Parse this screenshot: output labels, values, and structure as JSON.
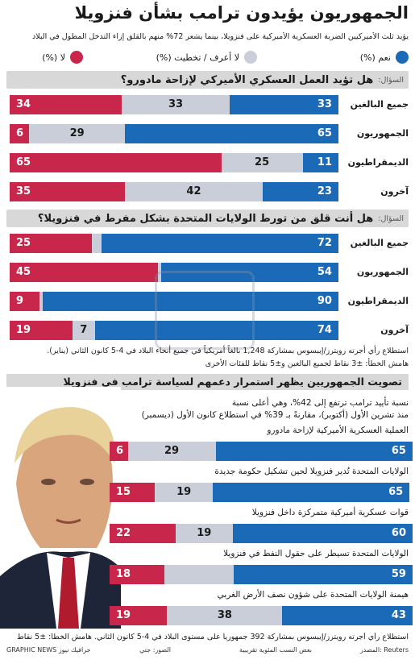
{
  "title": "الجمهوريون يؤيدون ترامب بشأن فنزويلا",
  "subtitle": "يؤيد ثلث الأميركيين الضربة العسكرية الأميركية على فنزويلا، بينما يشعر 72% منهم بالقلق إزاء التدخل المطول في البلاد",
  "legend": {
    "yes": "نعم (%)",
    "dontknow": "لا أعرف / تخطيت (%)",
    "no": "لا (%)"
  },
  "colors": {
    "yes": "#1a6ab8",
    "dontknow": "#c9ced8",
    "no": "#c8264a"
  },
  "q1": {
    "label": "السؤال:",
    "text": "هل تؤيد العمل العسكري الأميركي لإزاحة مادورو؟"
  },
  "q2": {
    "label": "السؤال:",
    "text": "هل أنت قلق من تورط الولايات المتحدة بشكل مفرط في فنزويلا؟"
  },
  "note1": "استطلاع رأي أجرته رويترز/إيبسوس بمشاركة 1,248 بالغاً أمريكياً في جميع أنحاء البلاد في 4-5 كانون الثاني (يناير).",
  "note2": "هامش الخطأ: ±3 نقاط لجميع البالغين و±5 نقاط للفئات الأخرى",
  "section2": {
    "title": "تصويت الجمهوريين يظهر استمرار دعمهم لسياسة ترامب في فنزويلا",
    "intro1": "نسبة تأييد ترامب ترتفع إلى 42%، وهي أعلى نسبة",
    "intro2": "منذ تشرين الأول (أكتوبر)، مقارنةً بـ 39% في استطلاع كانون الأول (ديسمبر)"
  },
  "footer": "استطلاع رأي أجرته رويترز/إيبسوس بمشاركة 392 جمهورياً على مستوى البلاد في 4-5 كانون الثاني. هامش الخطأ: ±5 نقاط",
  "credits": {
    "source": "المصدر: Reuters",
    "rounding": "بعض النسب المئوية تقريبية",
    "photo": "الصور: جتي",
    "brand": "GRAPHIC NEWS جرافيك نيوز"
  },
  "chart_data": [
    {
      "type": "bar",
      "title": "هل تؤيد العمل العسكري الأميركي لإزاحة مادورو؟",
      "categories": [
        "جميع البالغين",
        "الجمهوريون",
        "الديمقراطيون",
        "آخرون"
      ],
      "series": [
        {
          "name": "نعم (%)",
          "values": [
            33,
            65,
            11,
            23
          ]
        },
        {
          "name": "لا أعرف / تخطيت (%)",
          "values": [
            33,
            29,
            25,
            42
          ]
        },
        {
          "name": "لا (%)",
          "values": [
            34,
            6,
            65,
            35
          ]
        }
      ]
    },
    {
      "type": "bar",
      "title": "هل أنت قلق من تورط الولايات المتحدة بشكل مفرط في فنزويلا؟",
      "categories": [
        "جميع البالغين",
        "الجمهوريون",
        "الديمقراطيون",
        "آخرون"
      ],
      "series": [
        {
          "name": "نعم (%)",
          "values": [
            72,
            54,
            90,
            74
          ]
        },
        {
          "name": "لا أعرف / تخطيت (%)",
          "values": [
            3,
            1,
            1,
            7
          ]
        },
        {
          "name": "لا (%)",
          "values": [
            25,
            45,
            9,
            19
          ]
        }
      ],
      "hidden_labels": {
        "dontknow": [
          true,
          true,
          true,
          false
        ]
      }
    },
    {
      "type": "bar",
      "title": "تصويت الجمهوريين يظهر استمرار دعمهم لسياسة ترامب في فنزويلا",
      "categories": [
        "العملية العسكرية الأميركية لإزاحة مادورو",
        "الولايات المتحدة تُدير فنزويلا لحين تشكيل حكومة جديدة",
        "قوات عسكرية أميركية متمركزة داخل فنزويلا",
        "الولايات المتحدة تسيطر على حقول النفط في فنزويلا",
        "هيمنة الولايات المتحدة على شؤون نصف الأرض الغربي"
      ],
      "series": [
        {
          "name": "نعم (%)",
          "values": [
            65,
            65,
            60,
            59,
            43
          ]
        },
        {
          "name": "لا أعرف / تخطيت (%)",
          "values": [
            29,
            19,
            19,
            23,
            38
          ]
        },
        {
          "name": "لا (%)",
          "values": [
            6,
            15,
            22,
            18,
            19
          ]
        }
      ],
      "hidden_labels": {
        "dontknow": [
          false,
          false,
          false,
          true,
          false
        ]
      }
    }
  ]
}
